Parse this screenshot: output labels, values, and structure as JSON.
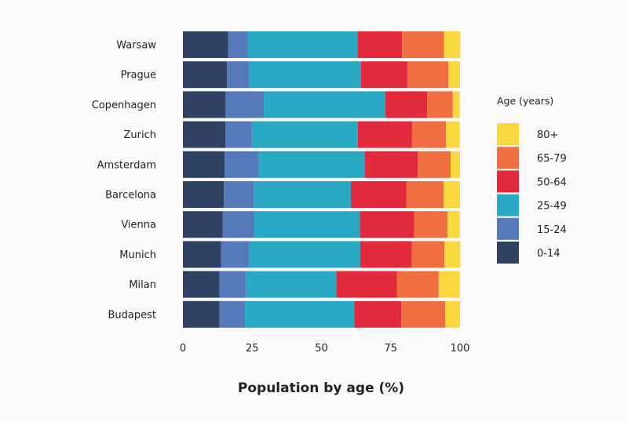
{
  "chart_data": {
    "type": "bar",
    "orientation": "horizontal",
    "stacked": true,
    "title": "",
    "xlabel": "Population by age (%)",
    "ylabel": "",
    "xlim": [
      0,
      100
    ],
    "xticks": [
      0,
      25,
      50,
      75,
      100
    ],
    "grid": false,
    "legend": {
      "title": "Age (years)",
      "placement": "right"
    },
    "categories": [
      "Warsaw",
      "Prague",
      "Copenhagen",
      "Zurich",
      "Amsterdam",
      "Barcelona",
      "Vienna",
      "Munich",
      "Milan",
      "Budapest"
    ],
    "series": [
      {
        "name": "0-14",
        "color": "#2f4264",
        "values": [
          16.3,
          15.9,
          15.4,
          15.3,
          15.0,
          14.8,
          14.4,
          13.8,
          13.2,
          13.2
        ]
      },
      {
        "name": "15-24",
        "color": "#5679bb",
        "values": [
          7.2,
          8.0,
          13.8,
          9.6,
          12.2,
          10.8,
          11.4,
          10.1,
          9.5,
          9.2
        ]
      },
      {
        "name": "25-49",
        "color": "#29a8c4",
        "values": [
          39.5,
          40.4,
          43.8,
          38.2,
          38.4,
          35.0,
          38.1,
          40.1,
          32.7,
          39.4
        ]
      },
      {
        "name": "50-64",
        "color": "#e32a3d",
        "values": [
          16.1,
          16.7,
          15.1,
          19.6,
          19.1,
          20.1,
          19.6,
          18.6,
          21.9,
          17.0
        ]
      },
      {
        "name": "65-79",
        "color": "#ef6f43",
        "values": [
          15.1,
          14.8,
          9.3,
          12.3,
          11.9,
          13.4,
          12.0,
          11.8,
          15.0,
          15.9
        ]
      },
      {
        "name": "80+",
        "color": "#f9d73f",
        "values": [
          5.9,
          4.2,
          2.5,
          4.9,
          3.4,
          5.9,
          4.4,
          5.7,
          7.6,
          5.3
        ]
      }
    ]
  }
}
